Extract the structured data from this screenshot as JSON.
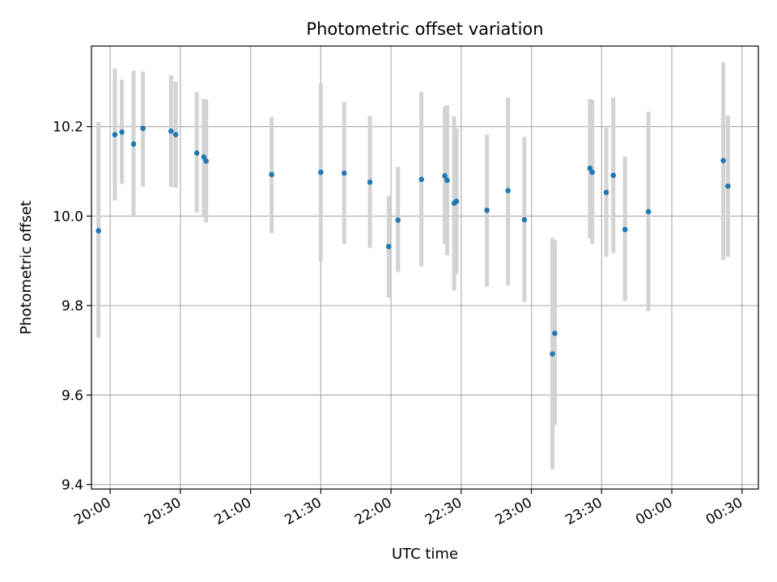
{
  "chart_data": {
    "type": "scatter",
    "title": "Photometric offset variation",
    "xlabel": "UTC time",
    "ylabel": "Photometric offset",
    "x_axis": {
      "kind": "time",
      "range": [
        "19:52",
        "00:37"
      ],
      "ticks": [
        "20:00",
        "20:30",
        "21:00",
        "21:30",
        "22:00",
        "22:30",
        "23:00",
        "23:30",
        "00:00",
        "00:30"
      ]
    },
    "y_axis": {
      "range": [
        9.39,
        10.38
      ],
      "ticks": [
        "9.4",
        "9.6",
        "9.8",
        "10.0",
        "10.2"
      ]
    },
    "grid": true,
    "legend": false,
    "marker_color": "#1f77b4",
    "errorbar_color": "#d3d3d3",
    "points": [
      {
        "time": "19:55",
        "y": 9.967,
        "low": 9.728,
        "high": 10.21
      },
      {
        "time": "20:02",
        "y": 10.182,
        "low": 10.035,
        "high": 10.33
      },
      {
        "time": "20:05",
        "y": 10.188,
        "low": 10.072,
        "high": 10.305
      },
      {
        "time": "20:10",
        "y": 10.161,
        "low": 10.0,
        "high": 10.325
      },
      {
        "time": "20:14",
        "y": 10.196,
        "low": 10.066,
        "high": 10.323
      },
      {
        "time": "20:26",
        "y": 10.19,
        "low": 10.065,
        "high": 10.315
      },
      {
        "time": "20:28",
        "y": 10.182,
        "low": 10.063,
        "high": 10.301
      },
      {
        "time": "20:37",
        "y": 10.141,
        "low": 10.008,
        "high": 10.277
      },
      {
        "time": "20:40",
        "y": 10.132,
        "low": 10.001,
        "high": 10.262
      },
      {
        "time": "20:41",
        "y": 10.123,
        "low": 9.986,
        "high": 10.261
      },
      {
        "time": "21:09",
        "y": 10.093,
        "low": 9.962,
        "high": 10.222
      },
      {
        "time": "21:30",
        "y": 10.098,
        "low": 9.898,
        "high": 10.297
      },
      {
        "time": "21:40",
        "y": 10.096,
        "low": 9.938,
        "high": 10.255
      },
      {
        "time": "21:51",
        "y": 10.076,
        "low": 9.929,
        "high": 10.224
      },
      {
        "time": "21:59",
        "y": 9.932,
        "low": 9.818,
        "high": 10.045
      },
      {
        "time": "22:03",
        "y": 9.991,
        "low": 9.875,
        "high": 10.11
      },
      {
        "time": "22:13",
        "y": 10.082,
        "low": 9.887,
        "high": 10.278
      },
      {
        "time": "22:23",
        "y": 10.09,
        "low": 9.938,
        "high": 10.245
      },
      {
        "time": "22:24",
        "y": 10.08,
        "low": 9.912,
        "high": 10.248
      },
      {
        "time": "22:27",
        "y": 10.029,
        "low": 9.834,
        "high": 10.223
      },
      {
        "time": "22:28",
        "y": 10.033,
        "low": 9.87,
        "high": 10.196
      },
      {
        "time": "22:41",
        "y": 10.013,
        "low": 9.842,
        "high": 10.182
      },
      {
        "time": "22:50",
        "y": 10.057,
        "low": 9.845,
        "high": 10.265
      },
      {
        "time": "22:57",
        "y": 9.992,
        "low": 9.808,
        "high": 10.177
      },
      {
        "time": "23:09",
        "y": 9.692,
        "low": 9.434,
        "high": 9.951
      },
      {
        "time": "23:10",
        "y": 9.738,
        "low": 9.533,
        "high": 9.945
      },
      {
        "time": "23:25",
        "y": 10.107,
        "low": 9.95,
        "high": 10.262
      },
      {
        "time": "23:26",
        "y": 10.098,
        "low": 9.938,
        "high": 10.26
      },
      {
        "time": "23:32",
        "y": 10.053,
        "low": 9.909,
        "high": 10.197
      },
      {
        "time": "23:35",
        "y": 10.091,
        "low": 9.917,
        "high": 10.265
      },
      {
        "time": "23:40",
        "y": 9.97,
        "low": 9.81,
        "high": 10.133
      },
      {
        "time": "23:50",
        "y": 10.01,
        "low": 9.788,
        "high": 10.233
      },
      {
        "time": "00:22",
        "y": 10.124,
        "low": 9.902,
        "high": 10.344
      },
      {
        "time": "00:24",
        "y": 10.067,
        "low": 9.909,
        "high": 10.225
      }
    ]
  }
}
